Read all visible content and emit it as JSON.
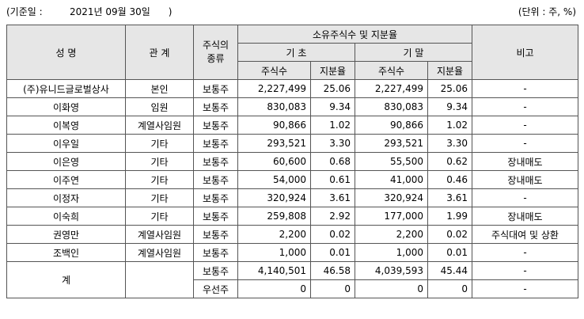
{
  "header": {
    "base_label": "(기준일 :",
    "base_date": "2021년 09월 30일",
    "base_close": ")",
    "unit": "(단위 : 주, %)"
  },
  "table": {
    "col_name": "성 명",
    "col_relation": "관 계",
    "col_stock_type": "주식의 종류",
    "col_owned": "소유주식수 및 지분율",
    "col_start": "기 초",
    "col_end": "기 말",
    "col_shares": "주식수",
    "col_ratio": "지분율",
    "col_note": "비고",
    "rows": [
      {
        "name": "(주)유니드글로벌상사",
        "relation": "본인",
        "type": "보통주",
        "start_shares": "2,227,499",
        "start_ratio": "25.06",
        "end_shares": "2,227,499",
        "end_ratio": "25.06",
        "note": "-"
      },
      {
        "name": "이화영",
        "relation": "임원",
        "type": "보통주",
        "start_shares": "830,083",
        "start_ratio": "9.34",
        "end_shares": "830,083",
        "end_ratio": "9.34",
        "note": "-"
      },
      {
        "name": "이복영",
        "relation": "계열사임원",
        "type": "보통주",
        "start_shares": "90,866",
        "start_ratio": "1.02",
        "end_shares": "90,866",
        "end_ratio": "1.02",
        "note": "-"
      },
      {
        "name": "이우일",
        "relation": "기타",
        "type": "보통주",
        "start_shares": "293,521",
        "start_ratio": "3.30",
        "end_shares": "293,521",
        "end_ratio": "3.30",
        "note": "-"
      },
      {
        "name": "이은영",
        "relation": "기타",
        "type": "보통주",
        "start_shares": "60,600",
        "start_ratio": "0.68",
        "end_shares": "55,500",
        "end_ratio": "0.62",
        "note": "장내매도"
      },
      {
        "name": "이주연",
        "relation": "기타",
        "type": "보통주",
        "start_shares": "54,000",
        "start_ratio": "0.61",
        "end_shares": "41,000",
        "end_ratio": "0.46",
        "note": "장내매도"
      },
      {
        "name": "이정자",
        "relation": "기타",
        "type": "보통주",
        "start_shares": "320,924",
        "start_ratio": "3.61",
        "end_shares": "320,924",
        "end_ratio": "3.61",
        "note": "-"
      },
      {
        "name": "이숙희",
        "relation": "기타",
        "type": "보통주",
        "start_shares": "259,808",
        "start_ratio": "2.92",
        "end_shares": "177,000",
        "end_ratio": "1.99",
        "note": "장내매도"
      },
      {
        "name": "권영만",
        "relation": "계열사임원",
        "type": "보통주",
        "start_shares": "2,200",
        "start_ratio": "0.02",
        "end_shares": "2,200",
        "end_ratio": "0.02",
        "note": "주식대여 및 상환"
      },
      {
        "name": "조백인",
        "relation": "계열사임원",
        "type": "보통주",
        "start_shares": "1,000",
        "start_ratio": "0.01",
        "end_shares": "1,000",
        "end_ratio": "0.01",
        "note": "-"
      }
    ],
    "total": {
      "label": "계",
      "rows": [
        {
          "type": "보통주",
          "start_shares": "4,140,501",
          "start_ratio": "46.58",
          "end_shares": "4,039,593",
          "end_ratio": "45.44",
          "note": "-"
        },
        {
          "type": "우선주",
          "start_shares": "0",
          "start_ratio": "0",
          "end_shares": "0",
          "end_ratio": "0",
          "note": "-"
        }
      ]
    }
  }
}
